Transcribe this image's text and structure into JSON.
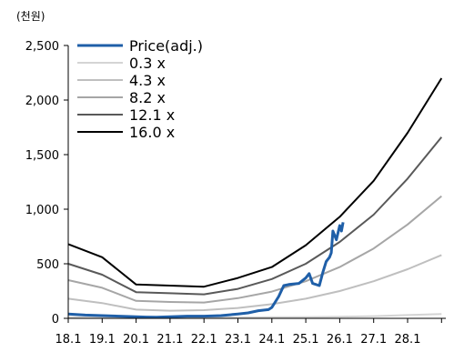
{
  "chart_data": {
    "type": "line",
    "unit_label": "(천원)",
    "x_tick_labels": [
      "18.1",
      "19.1",
      "20.1",
      "21.1",
      "22.1",
      "23.1",
      "24.1",
      "25.1",
      "26.1",
      "27.1",
      "28.1"
    ],
    "y_ticks": [
      0,
      500,
      1000,
      1500,
      2000,
      2500
    ],
    "y_tick_labels": [
      "0",
      "500",
      "1,000",
      "1,500",
      "2,000",
      "2,500"
    ],
    "ylim": [
      0,
      2500
    ],
    "legend_position": "top-left",
    "series": [
      {
        "name": "Price(adj.)",
        "color": "#1f5fa8",
        "values": [
          [
            2018.0,
            40
          ],
          [
            2018.5,
            30
          ],
          [
            2019.0,
            25
          ],
          [
            2019.5,
            20
          ],
          [
            2020.0,
            15
          ],
          [
            2020.3,
            12
          ],
          [
            2020.6,
            10
          ],
          [
            2021.0,
            15
          ],
          [
            2021.5,
            20
          ],
          [
            2022.0,
            20
          ],
          [
            2022.5,
            25
          ],
          [
            2023.0,
            40
          ],
          [
            2023.3,
            50
          ],
          [
            2023.6,
            70
          ],
          [
            2023.9,
            80
          ],
          [
            2024.0,
            100
          ],
          [
            2024.2,
            200
          ],
          [
            2024.35,
            300
          ],
          [
            2024.5,
            310
          ],
          [
            2024.8,
            320
          ],
          [
            2025.0,
            370
          ],
          [
            2025.1,
            410
          ],
          [
            2025.2,
            320
          ],
          [
            2025.4,
            300
          ],
          [
            2025.5,
            420
          ],
          [
            2025.6,
            520
          ],
          [
            2025.7,
            560
          ],
          [
            2025.75,
            600
          ],
          [
            2025.8,
            800
          ],
          [
            2025.9,
            720
          ],
          [
            2026.0,
            850
          ],
          [
            2026.05,
            800
          ],
          [
            2026.1,
            880
          ]
        ]
      },
      {
        "name": "0.3 x",
        "color": "#d4d4d4",
        "values": [
          [
            2018.0,
            10
          ],
          [
            2019.0,
            8
          ],
          [
            2020.0,
            6
          ],
          [
            2021.0,
            6
          ],
          [
            2022.0,
            6
          ],
          [
            2023.0,
            8
          ],
          [
            2024.0,
            10
          ],
          [
            2025.0,
            12
          ],
          [
            2026.0,
            15
          ],
          [
            2027.0,
            20
          ],
          [
            2028.0,
            30
          ],
          [
            2029.0,
            40
          ]
        ]
      },
      {
        "name": "4.3 x",
        "color": "#bfbfbf",
        "values": [
          [
            2018.0,
            180
          ],
          [
            2019.0,
            140
          ],
          [
            2020.0,
            80
          ],
          [
            2021.0,
            70
          ],
          [
            2022.0,
            75
          ],
          [
            2023.0,
            95
          ],
          [
            2024.0,
            130
          ],
          [
            2025.0,
            180
          ],
          [
            2026.0,
            250
          ],
          [
            2027.0,
            340
          ],
          [
            2028.0,
            450
          ],
          [
            2029.0,
            580
          ]
        ]
      },
      {
        "name": "8.2 x",
        "color": "#a6a6a6",
        "values": [
          [
            2018.0,
            350
          ],
          [
            2019.0,
            280
          ],
          [
            2020.0,
            160
          ],
          [
            2021.0,
            150
          ],
          [
            2022.0,
            145
          ],
          [
            2023.0,
            185
          ],
          [
            2024.0,
            245
          ],
          [
            2025.0,
            340
          ],
          [
            2026.0,
            470
          ],
          [
            2027.0,
            640
          ],
          [
            2028.0,
            860
          ],
          [
            2029.0,
            1120
          ]
        ]
      },
      {
        "name": "12.1 x",
        "color": "#595959",
        "values": [
          [
            2018.0,
            500
          ],
          [
            2019.0,
            400
          ],
          [
            2020.0,
            240
          ],
          [
            2021.0,
            230
          ],
          [
            2022.0,
            220
          ],
          [
            2023.0,
            270
          ],
          [
            2024.0,
            360
          ],
          [
            2025.0,
            500
          ],
          [
            2026.0,
            700
          ],
          [
            2027.0,
            950
          ],
          [
            2028.0,
            1280
          ],
          [
            2029.0,
            1660
          ]
        ]
      },
      {
        "name": "16.0 x",
        "color": "#000000",
        "values": [
          [
            2018.0,
            680
          ],
          [
            2019.0,
            560
          ],
          [
            2020.0,
            310
          ],
          [
            2021.0,
            300
          ],
          [
            2022.0,
            290
          ],
          [
            2023.0,
            370
          ],
          [
            2024.0,
            470
          ],
          [
            2025.0,
            670
          ],
          [
            2026.0,
            930
          ],
          [
            2027.0,
            1260
          ],
          [
            2028.0,
            1700
          ],
          [
            2029.0,
            2200
          ]
        ]
      }
    ]
  }
}
